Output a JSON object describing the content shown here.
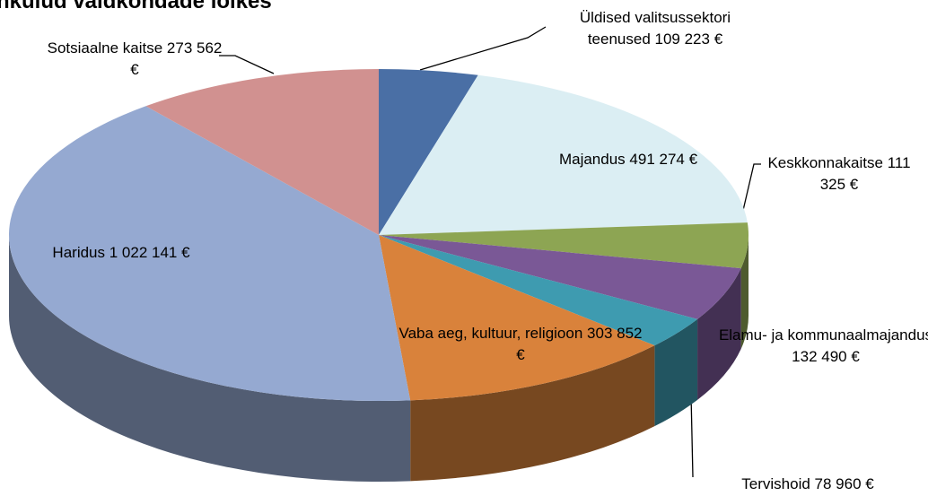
{
  "chart_data": {
    "type": "pie3d",
    "title": "nkulud valdkondade lõikes",
    "categories": [
      "Üldised valitsussektori teenused",
      "Majandus",
      "Keskkonnakaitse",
      "Elamu- ja kommunaalmajandus",
      "Tervishoid",
      "Vaba aeg, kultuur, religioon",
      "Haridus",
      "Sotsiaalne kaitse"
    ],
    "values": [
      109223,
      491274,
      111325,
      132490,
      78960,
      303852,
      1022141,
      273562
    ],
    "value_labels": [
      "109 223 €",
      "491 274 €",
      "111 325 €",
      "132 490 €",
      "78 960 €",
      "303 852 €",
      "1 022 141 €",
      "273 562 €"
    ],
    "colors": [
      "#4a6fa5",
      "#dbeef3",
      "#8da553",
      "#7a5896",
      "#3e9bb0",
      "#d9823b",
      "#95a9d1",
      "#d19190"
    ]
  }
}
